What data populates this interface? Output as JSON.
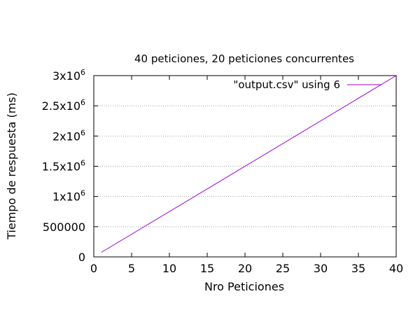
{
  "chart_data": {
    "type": "line",
    "title": "40 peticiones, 20 peticiones concurrentes",
    "xlabel": "Nro Peticiones",
    "ylabel": "Tiempo de respuesta (ms)",
    "xlim": [
      0,
      40
    ],
    "ylim": [
      0,
      3000000
    ],
    "x_ticks": [
      {
        "value": 0,
        "label": "0"
      },
      {
        "value": 5,
        "label": "5"
      },
      {
        "value": 10,
        "label": "10"
      },
      {
        "value": 15,
        "label": "15"
      },
      {
        "value": 20,
        "label": "20"
      },
      {
        "value": 25,
        "label": "25"
      },
      {
        "value": 30,
        "label": "30"
      },
      {
        "value": 35,
        "label": "35"
      },
      {
        "value": 40,
        "label": "40"
      }
    ],
    "y_ticks": [
      {
        "value": 0,
        "mantissa": "0",
        "exponent": ""
      },
      {
        "value": 500000,
        "mantissa": "500000",
        "exponent": ""
      },
      {
        "value": 1000000,
        "mantissa": "1x10",
        "exponent": "6"
      },
      {
        "value": 1500000,
        "mantissa": "1.5x10",
        "exponent": "6"
      },
      {
        "value": 2000000,
        "mantissa": "2x10",
        "exponent": "6"
      },
      {
        "value": 2500000,
        "mantissa": "2.5x10",
        "exponent": "6"
      },
      {
        "value": 3000000,
        "mantissa": "3x10",
        "exponent": "6"
      }
    ],
    "grid": "horizontal-dotted",
    "legend_position": "top-right",
    "series": [
      {
        "name": "\"output.csv\" using 6",
        "color": "#9400d3",
        "x": [
          1,
          40
        ],
        "y": [
          75000,
          3000000
        ]
      }
    ]
  }
}
